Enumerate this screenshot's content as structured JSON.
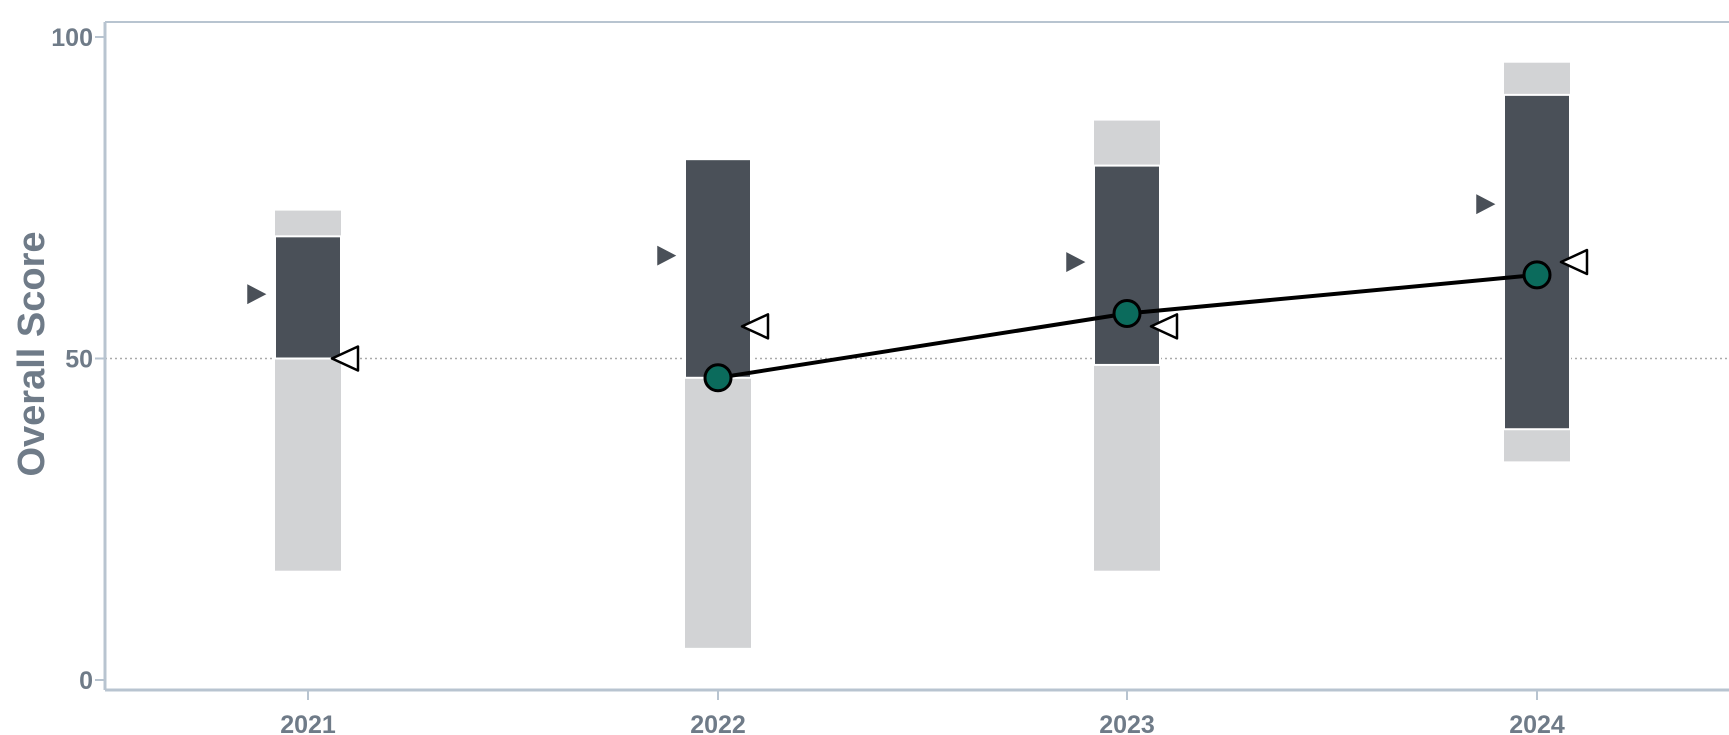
{
  "chart_data": {
    "type": "bar",
    "title": "",
    "xlabel": "",
    "ylabel": "Overall Score",
    "ylim": [
      0,
      100
    ],
    "y_ticks": [
      "0",
      "50",
      "100"
    ],
    "reference_line": 50,
    "grid": false,
    "categories": [
      "2021",
      "2022",
      "2023",
      "2024"
    ],
    "outer_range": [
      {
        "low": 17,
        "high": 73
      },
      {
        "low": 5,
        "high": 81
      },
      {
        "low": 17,
        "high": 87
      },
      {
        "low": 34,
        "high": 96
      }
    ],
    "inner_range": [
      {
        "low": 50,
        "high": 69
      },
      {
        "low": 47,
        "high": 81
      },
      {
        "low": 49,
        "high": 80
      },
      {
        "low": 39,
        "high": 91
      }
    ],
    "filled_marker": [
      60,
      66,
      65,
      74
    ],
    "open_marker": [
      50,
      55,
      55,
      65
    ],
    "line_series": {
      "categories": [
        "2022",
        "2023",
        "2024"
      ],
      "values": [
        47,
        57,
        63
      ]
    },
    "colors": {
      "outer_bar": "#d2d3d5",
      "inner_bar": "#4a5058",
      "line": "#000000",
      "point_fill": "#0b6b5c",
      "axis": "#b8c4d0",
      "tick_text": "#6f7b88",
      "reference_line": "#aaaaaa"
    }
  }
}
